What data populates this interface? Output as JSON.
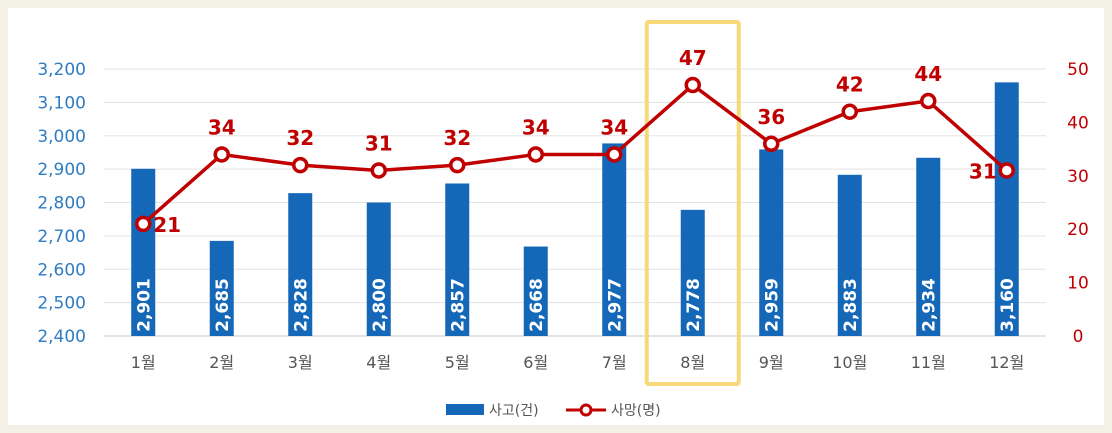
{
  "chart_data": {
    "type": "bar+line",
    "categories": [
      "1월",
      "2월",
      "3월",
      "4월",
      "5월",
      "6월",
      "7월",
      "8월",
      "9월",
      "10월",
      "11월",
      "12월"
    ],
    "series": [
      {
        "name": "사고(건)",
        "type": "bar",
        "axis": "left",
        "color": "#1567b8",
        "values": [
          2901,
          2685,
          2828,
          2800,
          2857,
          2668,
          2977,
          2778,
          2959,
          2883,
          2934,
          3160
        ],
        "labels": [
          "2,901",
          "2,685",
          "2,828",
          "2,800",
          "2,857",
          "2,668",
          "2,977",
          "2,778",
          "2,959",
          "2,883",
          "2,934",
          "3,160"
        ]
      },
      {
        "name": "사망(명)",
        "type": "line",
        "axis": "right",
        "color": "#c00000",
        "values": [
          21,
          34,
          32,
          31,
          32,
          34,
          34,
          47,
          36,
          42,
          44,
          31
        ],
        "labels": [
          "21",
          "34",
          "32",
          "31",
          "32",
          "34",
          "34",
          "47",
          "36",
          "42",
          "44",
          "31"
        ]
      }
    ],
    "y_left": {
      "min": 2400,
      "max": 3200,
      "ticks": [
        "2,400",
        "2,500",
        "2,600",
        "2,700",
        "2,800",
        "2,900",
        "3,000",
        "3,100",
        "3,200"
      ],
      "color": "#2f7cc4"
    },
    "y_right": {
      "min": 0,
      "max": 50,
      "ticks": [
        "0",
        "10",
        "20",
        "30",
        "40",
        "50"
      ],
      "color": "#c00000"
    },
    "highlight_category": "8월",
    "highlight_color": "#f7d97a",
    "grid": true,
    "legend": "bottom"
  }
}
